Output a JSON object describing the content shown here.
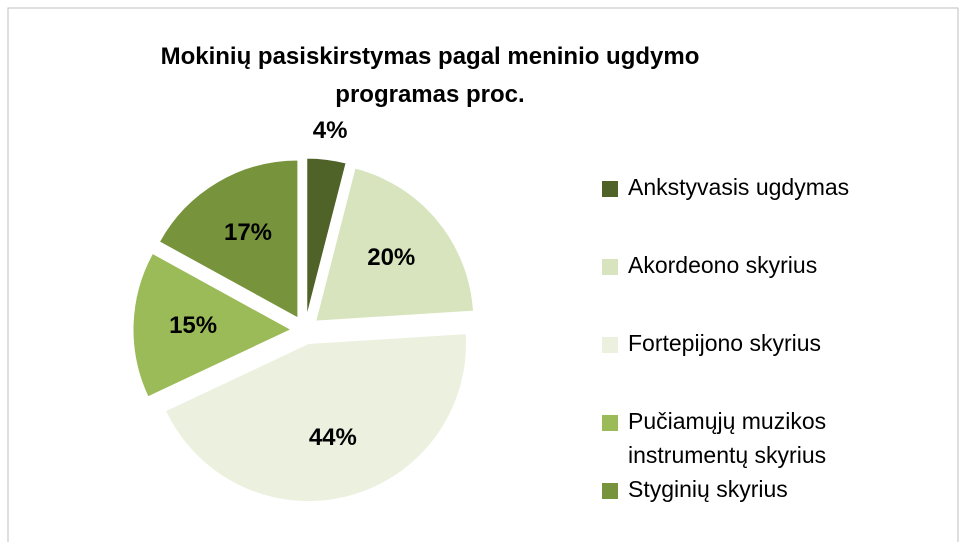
{
  "chart_data": {
    "type": "pie",
    "title": "Mokinių pasiskirstymas pagal  meninio ugdymo programas proc.",
    "categories": [
      "Ankstyvasis ugdymas",
      "Akordeono skyrius",
      "Fortepijono skyrius",
      "Pučiamųjų muzikos instrumentų skyrius",
      "Styginių skyrius"
    ],
    "values": [
      4,
      20,
      44,
      15,
      17
    ],
    "value_labels": [
      "4%",
      "20%",
      "44%",
      "15%",
      "17%"
    ],
    "colors": [
      "#4f6228",
      "#d7e4bd",
      "#ebf1de",
      "#9bbb59",
      "#77933c"
    ],
    "legend": "right"
  }
}
